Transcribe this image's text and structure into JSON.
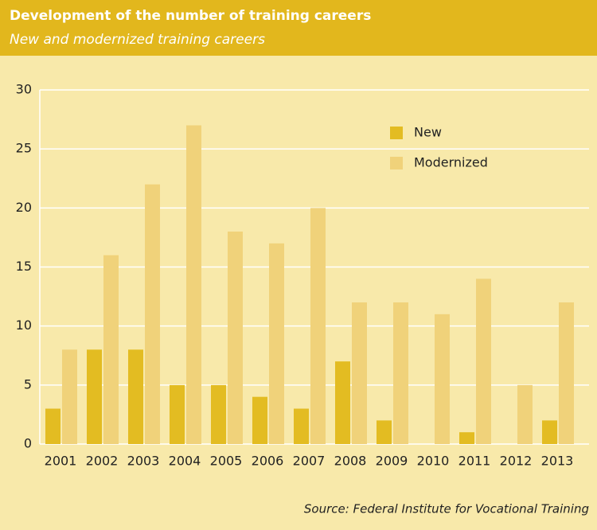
{
  "chart_data": {
    "type": "bar",
    "title": "Development of the number of training careers",
    "subtitle": "New and modernized training careers",
    "categories": [
      "2001",
      "2002",
      "2003",
      "2004",
      "2005",
      "2006",
      "2007",
      "2008",
      "2009",
      "2010",
      "2011",
      "2012",
      "2013"
    ],
    "series": [
      {
        "name": "New",
        "color": "#e3bc22",
        "values": [
          3,
          8,
          8,
          5,
          5,
          4,
          3,
          7,
          2,
          0,
          1,
          0,
          2
        ]
      },
      {
        "name": "Modernized",
        "color": "#f0d27a",
        "values": [
          8,
          16,
          22,
          27,
          18,
          17,
          20,
          12,
          12,
          11,
          14,
          5,
          12
        ]
      }
    ],
    "ylim": [
      0,
      30
    ],
    "yticks": [
      0,
      5,
      10,
      15,
      20,
      25,
      30
    ],
    "grid": true,
    "source": "Source: Federal Institute for Vocational Training"
  }
}
